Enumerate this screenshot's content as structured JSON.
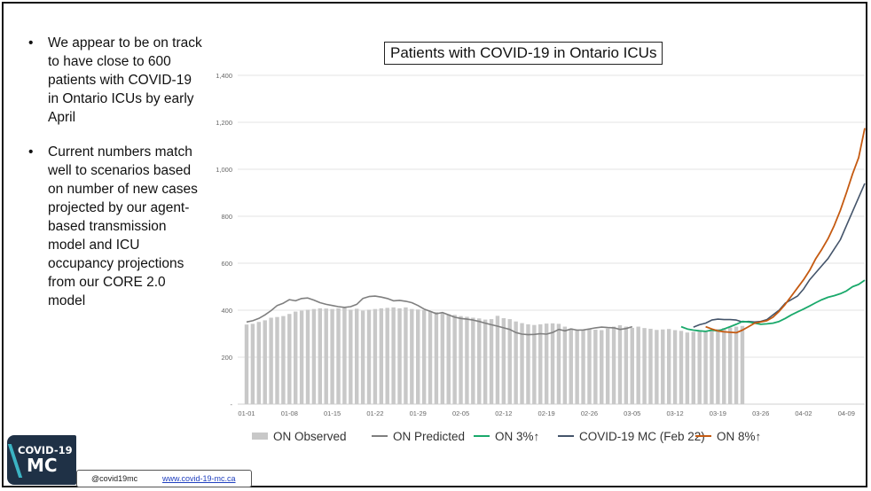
{
  "bullets": [
    "We appear to be on track to have close to 600 patients with COVID-19 in Ontario ICUs by early April",
    "Current numbers match well to scenarios based on number of new cases projected by our agent-based transmission model and ICU occupancy projections from our CORE 2.0 model"
  ],
  "footer": {
    "handle": "@covid19mc",
    "website": "www.covid-19-mc.ca"
  },
  "logo": {
    "line1": "COVID-19",
    "line2": "MC"
  },
  "colors": {
    "observed": "#c8c8c8",
    "predicted": "#7f7f7f",
    "on3": "#1aa96b",
    "mc": "#44546a",
    "on8": "#c55a11"
  },
  "chart_data": {
    "type": "line",
    "title": "Patients with COVID-19 in Ontario ICUs",
    "xlabel": "",
    "ylabel": "",
    "ylim": [
      0,
      1400
    ],
    "yticks": [
      "-",
      "200",
      "400",
      "600",
      "800",
      "1,000",
      "1,200",
      "1,400"
    ],
    "ytick_values": [
      0,
      200,
      400,
      600,
      800,
      1000,
      1200,
      1400
    ],
    "xticks": [
      "01-01",
      "01-08",
      "01-15",
      "01-22",
      "01-29",
      "02-05",
      "02-12",
      "02-19",
      "02-26",
      "03-05",
      "03-12",
      "03-19",
      "03-26",
      "04-02",
      "04-09"
    ],
    "day_count": 102,
    "legend": [
      {
        "key": "observed",
        "label": "ON Observed",
        "kind": "bar"
      },
      {
        "key": "predicted",
        "label": "ON Predicted",
        "kind": "line"
      },
      {
        "key": "on3",
        "label": "ON 3%↑",
        "kind": "line"
      },
      {
        "key": "mc",
        "label": "COVID-19 MC (Feb 22)",
        "kind": "line"
      },
      {
        "key": "on8",
        "label": "ON 8%↑",
        "kind": "line"
      }
    ],
    "observed": [
      339,
      342,
      350,
      357,
      368,
      371,
      375,
      384,
      394,
      398,
      402,
      405,
      408,
      407,
      405,
      408,
      410,
      402,
      406,
      398,
      402,
      405,
      408,
      410,
      412,
      408,
      412,
      405,
      403,
      400,
      396,
      392,
      388,
      383,
      380,
      375,
      372,
      368,
      365,
      360,
      362,
      376,
      366,
      362,
      352,
      345,
      340,
      337,
      340,
      343,
      344,
      342,
      330,
      322,
      318,
      314,
      318,
      317,
      315,
      322,
      330,
      336,
      330,
      325,
      330,
      324,
      321,
      316,
      318,
      320,
      315,
      312,
      305,
      308,
      310,
      312,
      316,
      320,
      324,
      326,
      330,
      333
    ],
    "predicted": [
      350,
      355,
      365,
      380,
      398,
      420,
      430,
      445,
      440,
      450,
      452,
      443,
      432,
      425,
      420,
      415,
      412,
      415,
      425,
      450,
      458,
      460,
      456,
      450,
      440,
      442,
      438,
      432,
      420,
      405,
      395,
      385,
      390,
      380,
      370,
      365,
      362,
      358,
      352,
      345,
      338,
      332,
      325,
      318,
      305,
      298,
      296,
      297,
      300,
      298,
      305,
      318,
      312,
      320,
      315,
      316,
      320,
      325,
      328,
      326,
      325,
      318,
      322,
      330
    ],
    "mc": [
      328,
      338,
      345,
      358,
      362,
      360,
      360,
      358,
      350,
      352,
      350,
      352,
      360,
      380,
      400,
      430,
      445,
      460,
      490,
      530,
      560,
      590,
      620,
      660,
      700,
      760,
      820,
      880,
      940
    ],
    "on3": [
      330,
      320,
      315,
      312,
      310,
      315,
      312,
      320,
      330,
      340,
      352,
      350,
      345,
      340,
      342,
      345,
      352,
      365,
      380,
      393,
      405,
      418,
      432,
      445,
      455,
      462,
      470,
      482,
      500,
      510,
      528
    ],
    "on8": [
      330,
      320,
      312,
      308,
      306,
      304,
      315,
      330,
      345,
      350,
      355,
      370,
      395,
      425,
      460,
      495,
      530,
      570,
      620,
      660,
      705,
      760,
      825,
      900,
      980,
      1050,
      1175
    ]
  }
}
